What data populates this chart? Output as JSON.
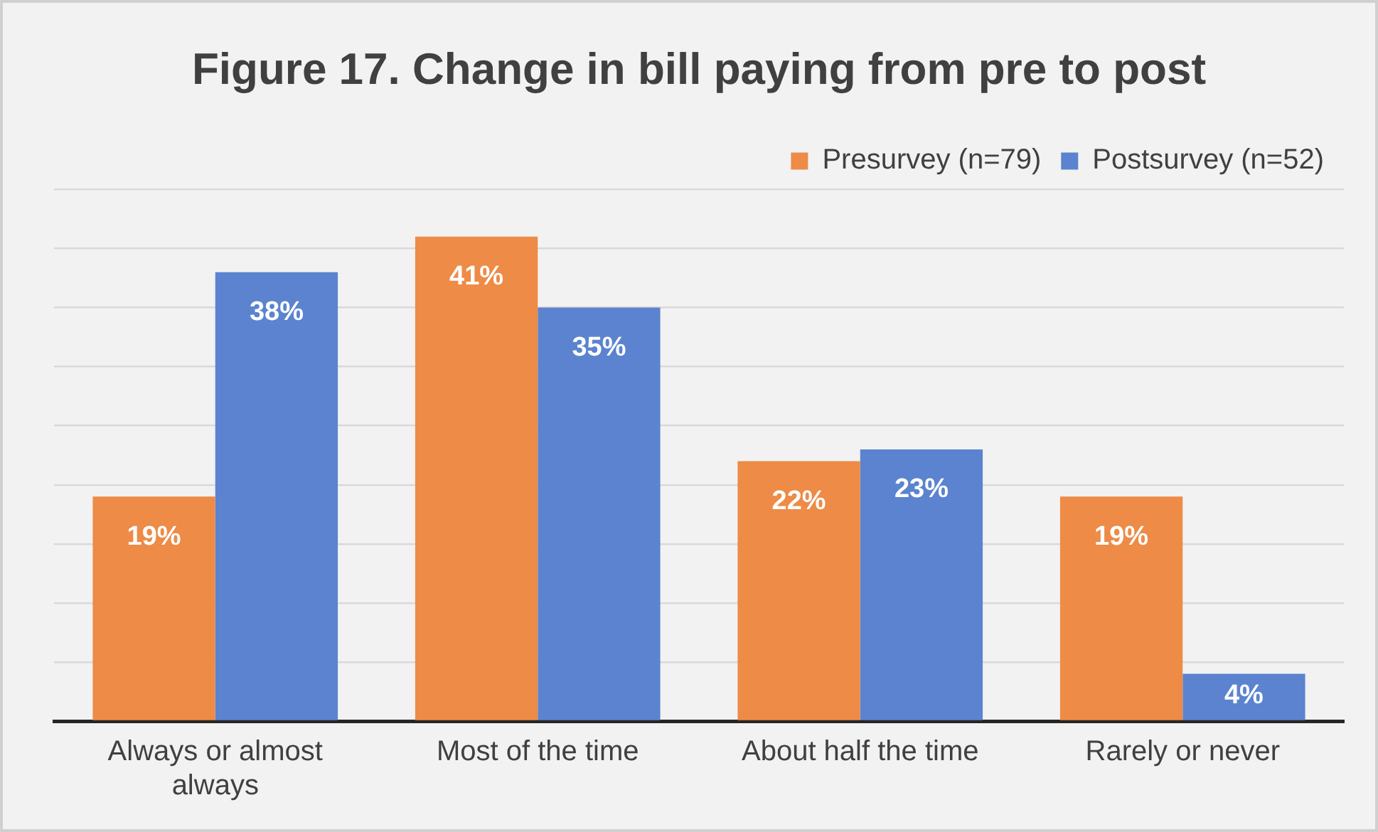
{
  "chart_data": {
    "type": "bar",
    "title": "Figure 17. Change in bill paying from pre to post",
    "categories": [
      "Always or almost always",
      "Most of the time",
      "About half the time",
      "Rarely or never"
    ],
    "series": [
      {
        "name": "Presurvey (n=79)",
        "color": "#ed8b47",
        "values": [
          19,
          41,
          22,
          19
        ],
        "value_labels": [
          "19%",
          "41%",
          "22%",
          "19%"
        ]
      },
      {
        "name": "Postsurvey (n=52)",
        "color": "#5b83cf",
        "values": [
          38,
          35,
          23,
          4
        ],
        "value_labels": [
          "38%",
          "35%",
          "23%",
          "4%"
        ]
      }
    ],
    "ylim": [
      0,
      45
    ],
    "yticks": [
      {
        "value": 0,
        "label": null
      },
      {
        "value": 5,
        "label": null
      },
      {
        "value": 10,
        "label": null
      },
      {
        "value": 15,
        "label": null
      },
      {
        "value": 20,
        "label": null
      },
      {
        "value": 25,
        "label": null
      },
      {
        "value": 30,
        "label": null
      },
      {
        "value": 35,
        "label": null
      },
      {
        "value": 40,
        "label": null
      },
      {
        "value": 45,
        "label": null
      }
    ],
    "tick_labels": "x",
    "grid": "y",
    "legend": "top right"
  }
}
